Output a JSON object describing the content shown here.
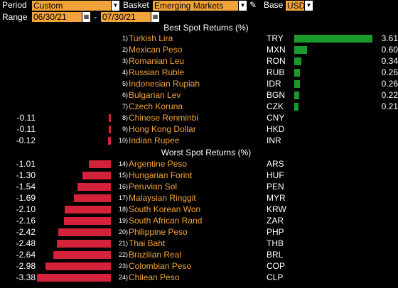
{
  "toolbar": {
    "period_label": "Period",
    "period_value": "Custom",
    "basket_label": "Basket",
    "basket_value": "Emerging Markets",
    "base_label": "Base",
    "base_value": "USD",
    "range_label": "Range",
    "range_start": "06/30/21",
    "range_sep": "-",
    "range_end": "07/30/21"
  },
  "best": {
    "title": "Best Spot Returns (%)",
    "rows": [
      {
        "rank": "1)",
        "name": "Turkish Lira",
        "code": "TRY",
        "value": 3.61,
        "label": "3.61"
      },
      {
        "rank": "2)",
        "name": "Mexican Peso",
        "code": "MXN",
        "value": 0.6,
        "label": "0.60"
      },
      {
        "rank": "3)",
        "name": "Romanian Leu",
        "code": "RON",
        "value": 0.34,
        "label": "0.34"
      },
      {
        "rank": "4)",
        "name": "Russian Ruble",
        "code": "RUB",
        "value": 0.26,
        "label": "0.26"
      },
      {
        "rank": "5)",
        "name": "Indonesian Rupiah",
        "code": "IDR",
        "value": 0.26,
        "label": "0.26"
      },
      {
        "rank": "6)",
        "name": "Bulgarian Lev",
        "code": "BGN",
        "value": 0.22,
        "label": "0.22"
      },
      {
        "rank": "7)",
        "name": "Czech Koruna",
        "code": "CZK",
        "value": 0.21,
        "label": "0.21"
      },
      {
        "rank": "8)",
        "name": "Chinese Renminbi",
        "code": "CNY",
        "value": -0.11,
        "label": "-0.11"
      },
      {
        "rank": "9)",
        "name": "Hong Kong Dollar",
        "code": "HKD",
        "value": -0.11,
        "label": "-0.11"
      },
      {
        "rank": "10)",
        "name": "Indian Rupee",
        "code": "INR",
        "value": -0.12,
        "label": "-0.12"
      }
    ]
  },
  "worst": {
    "title": "Worst Spot Returns (%)",
    "rows": [
      {
        "rank": "14)",
        "name": "Argentine Peso",
        "code": "ARS",
        "value": -1.01,
        "label": "-1.01"
      },
      {
        "rank": "15)",
        "name": "Hungarian Forint",
        "code": "HUF",
        "value": -1.3,
        "label": "-1.30"
      },
      {
        "rank": "16)",
        "name": "Peruvian Sol",
        "code": "PEN",
        "value": -1.54,
        "label": "-1.54"
      },
      {
        "rank": "17)",
        "name": "Malaysian Ringgit",
        "code": "MYR",
        "value": -1.69,
        "label": "-1.69"
      },
      {
        "rank": "18)",
        "name": "South Korean Won",
        "code": "KRW",
        "value": -2.1,
        "label": "-2.10"
      },
      {
        "rank": "19)",
        "name": "South African Rand",
        "code": "ZAR",
        "value": -2.16,
        "label": "-2.16"
      },
      {
        "rank": "20)",
        "name": "Philippine Peso",
        "code": "PHP",
        "value": -2.42,
        "label": "-2.42"
      },
      {
        "rank": "21)",
        "name": "Thai Baht",
        "code": "THB",
        "value": -2.48,
        "label": "-2.48"
      },
      {
        "rank": "22)",
        "name": "Brazilian Real",
        "code": "BRL",
        "value": -2.64,
        "label": "-2.64"
      },
      {
        "rank": "23)",
        "name": "Colombian Peso",
        "code": "COP",
        "value": -2.98,
        "label": "-2.98"
      },
      {
        "rank": "24)",
        "name": "Chilean Peso",
        "code": "CLP",
        "value": -3.38,
        "label": "-3.38"
      }
    ]
  },
  "colors": {
    "accent": "#f2a43a",
    "positive": "#1a9a2a",
    "negative": "#d3223a"
  }
}
